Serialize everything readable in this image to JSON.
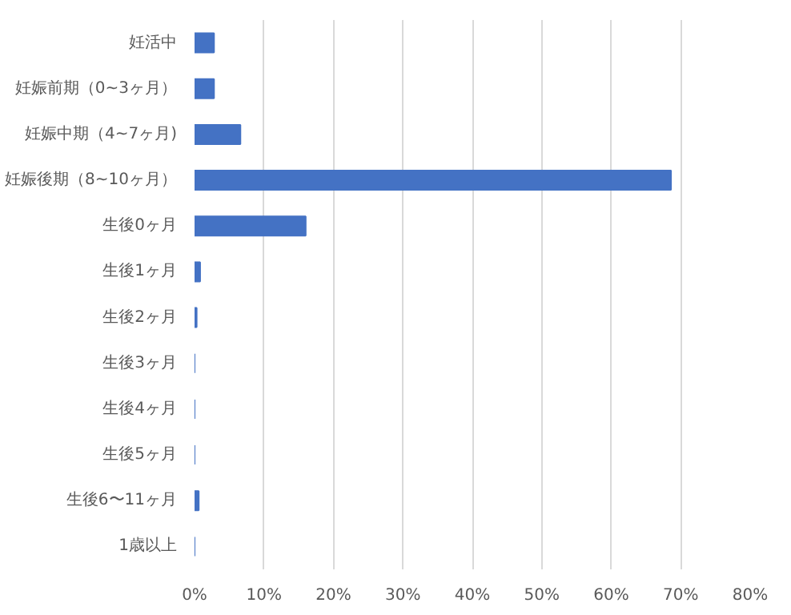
{
  "chart_data": {
    "type": "bar",
    "orientation": "horizontal",
    "categories": [
      "妊活中",
      "妊娠前期（0~3ヶ月）",
      "妊娠中期（4~7ヶ月)",
      "妊娠後期（8~10ヶ月）",
      "生後0ヶ月",
      "生後1ヶ月",
      "生後2ヶ月",
      "生後3ヶ月",
      "生後4ヶ月",
      "生後5ヶ月",
      "生後6〜11ヶ月",
      "1歳以上"
    ],
    "values": [
      2.8,
      2.8,
      6.6,
      68.6,
      16.0,
      0.8,
      0.3,
      0,
      0,
      0,
      0.6,
      0
    ],
    "color": "#4472c4",
    "xlim": [
      0,
      80
    ],
    "xticks": [
      {
        "value": 0,
        "label": "0%"
      },
      {
        "value": 10,
        "label": "10%"
      },
      {
        "value": 20,
        "label": "20%"
      },
      {
        "value": 30,
        "label": "30%"
      },
      {
        "value": 40,
        "label": "40%"
      },
      {
        "value": 50,
        "label": "50%"
      },
      {
        "value": 60,
        "label": "60%"
      },
      {
        "value": 70,
        "label": "70%"
      },
      {
        "value": 80,
        "label": "80%"
      }
    ],
    "grid": "x"
  }
}
